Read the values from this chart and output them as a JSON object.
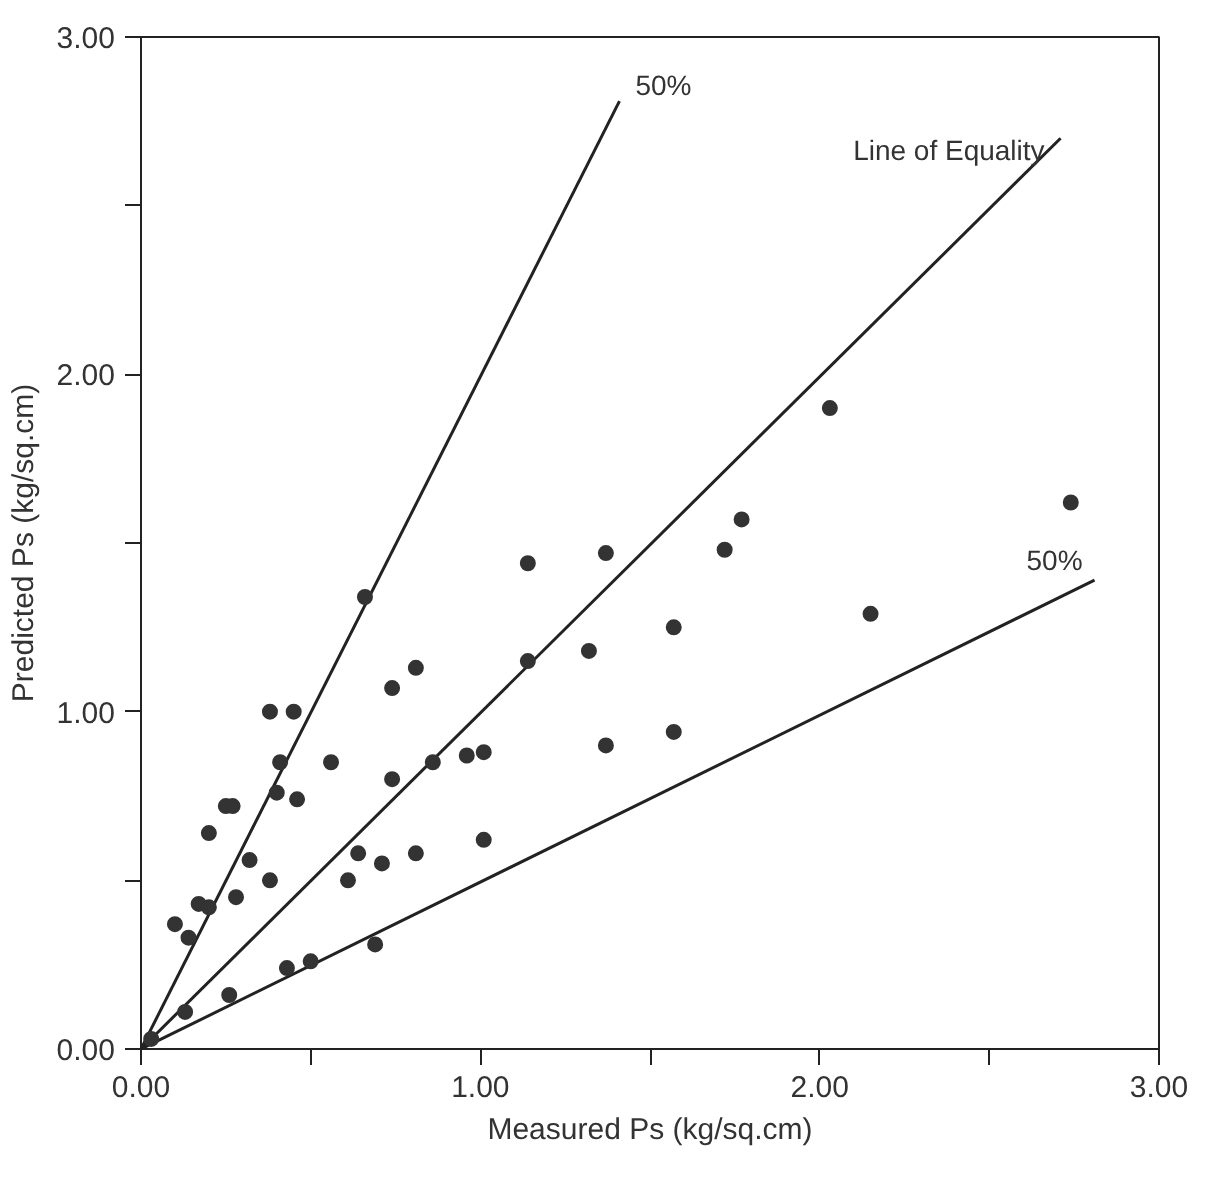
{
  "chart_data": {
    "type": "scatter",
    "xlabel": "Measured Ps (kg/sq.cm)",
    "ylabel": "Predicted Ps (kg/sq.cm)",
    "xlim": [
      0,
      3
    ],
    "ylim": [
      0,
      3
    ],
    "xticks": [
      {
        "value": 0,
        "label": "0.00"
      },
      {
        "value": 0.5,
        "label": null
      },
      {
        "value": 1,
        "label": "1.00"
      },
      {
        "value": 1.5,
        "label": null
      },
      {
        "value": 2,
        "label": "2.00"
      },
      {
        "value": 2.5,
        "label": null
      },
      {
        "value": 3,
        "label": "3.00"
      }
    ],
    "yticks": [
      {
        "value": 0,
        "label": "0.00"
      },
      {
        "value": 0.5,
        "label": null
      },
      {
        "value": 1,
        "label": "1.00"
      },
      {
        "value": 1.5,
        "label": null
      },
      {
        "value": 2,
        "label": "2.00"
      },
      {
        "value": 2.5,
        "label": null
      },
      {
        "value": 3,
        "label": "3.00"
      }
    ],
    "grid": false,
    "series": [
      {
        "marker": "circle",
        "color": "#333333",
        "x": [
          0.03,
          0.13,
          0.26,
          0.1,
          0.14,
          0.17,
          0.2,
          0.28,
          0.32,
          0.2,
          0.25,
          0.27,
          0.38,
          0.4,
          0.46,
          0.41,
          0.38,
          0.45,
          0.43,
          0.5,
          0.69,
          0.56,
          0.61,
          0.64,
          0.71,
          0.81,
          0.74,
          0.74,
          0.81,
          0.66,
          0.86,
          0.96,
          1.01,
          1.01,
          1.14,
          1.32,
          1.14,
          1.37,
          1.77,
          1.72,
          2.03,
          2.74,
          2.15,
          1.57,
          1.37,
          1.57
        ],
        "values": [
          0.03,
          0.11,
          0.16,
          0.37,
          0.33,
          0.43,
          0.42,
          0.45,
          0.56,
          0.64,
          0.72,
          0.72,
          0.5,
          0.76,
          0.74,
          0.85,
          1.0,
          1.0,
          0.24,
          0.26,
          0.31,
          0.85,
          0.5,
          0.58,
          0.55,
          0.58,
          0.8,
          1.07,
          1.13,
          1.34,
          0.85,
          0.87,
          0.88,
          0.62,
          1.15,
          1.18,
          1.44,
          1.47,
          1.57,
          1.48,
          1.9,
          1.62,
          1.29,
          1.25,
          0.9,
          0.94
        ]
      },
      {
        "type": "line",
        "marker": "none",
        "name": "50%",
        "color": "#222222",
        "x": [
          0,
          1.41
        ],
        "values": [
          0,
          2.81
        ]
      },
      {
        "type": "line",
        "marker": "none",
        "name": "Line of Equality",
        "color": "#222222",
        "x": [
          0,
          2.71
        ],
        "values": [
          0,
          2.7
        ]
      },
      {
        "type": "line",
        "marker": "none",
        "name": "50%",
        "color": "#222222",
        "x": [
          0,
          2.81
        ],
        "values": [
          0,
          1.39
        ]
      }
    ]
  }
}
